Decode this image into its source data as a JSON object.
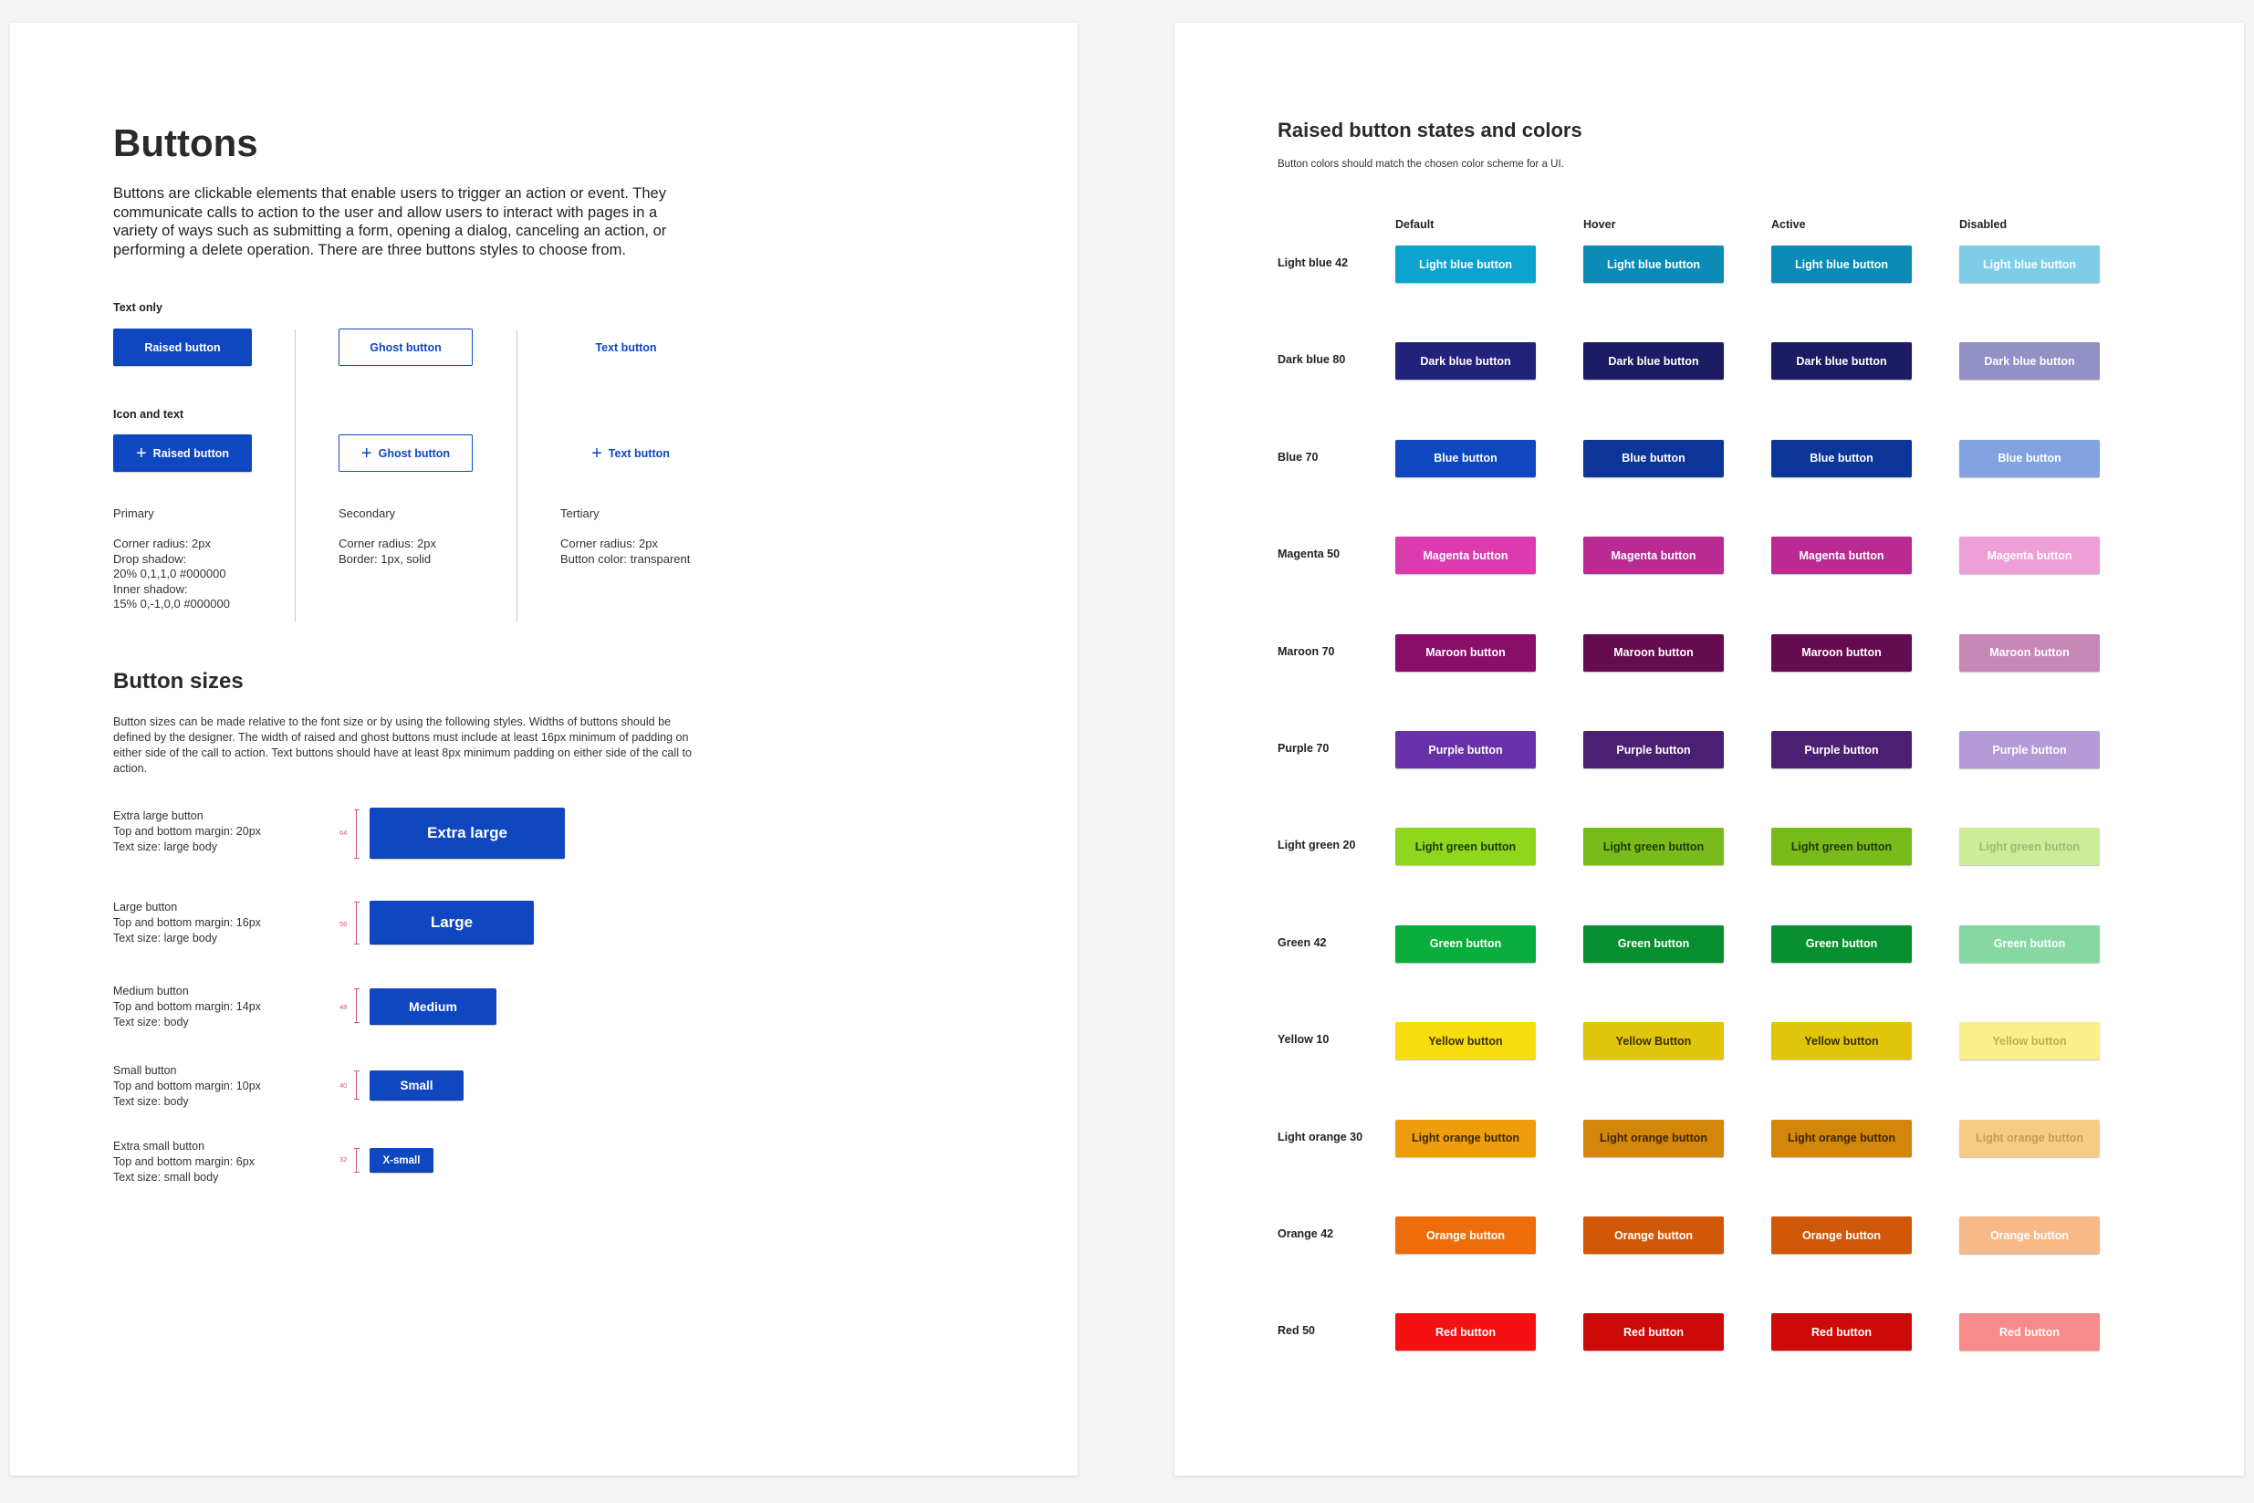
{
  "left": {
    "title": "Buttons",
    "intro": "Buttons are clickable elements that enable users to trigger an action or event. They communicate calls to action to the user and allow users to interact with pages in a variety of ways such as submitting a form, opening a dialog, canceling an action, or performing a delete operation. There are three buttons styles to choose from.",
    "text_only_label": "Text only",
    "icon_and_text_label": "Icon and text",
    "raised_label": "Raised button",
    "ghost_label": "Ghost button",
    "text_label": "Text button",
    "primary": {
      "name": "Primary",
      "notes": "Corner radius: 2px\nDrop shadow:\n20% 0,1,1,0 #000000\nInner shadow:\n15% 0,-1,0,0 #000000"
    },
    "secondary": {
      "name": "Secondary",
      "notes": "Corner radius: 2px\nBorder: 1px, solid"
    },
    "tertiary": {
      "name": "Tertiary",
      "notes": "Corner radius: 2px\nButton color: transparent"
    },
    "sizes_title": "Button sizes",
    "sizes_body": "Button sizes can be made relative to the font size or by using the following styles. Widths of buttons should be defined by the designer. The width of raised and ghost buttons must include at least 16px minimum of padding on either side of the call to action. Text buttons should have at least 8px minimum padding on either side of the call to action.",
    "sizes": [
      {
        "desc": "Extra large button\nTop and bottom margin: 20px\nText size: large body",
        "measure": "64",
        "label": "Extra large"
      },
      {
        "desc": "Large button\nTop and bottom margin: 16px\nText size: large body",
        "measure": "56",
        "label": "Large"
      },
      {
        "desc": "Medium button\nTop and bottom margin: 14px\nText size: body",
        "measure": "48",
        "label": "Medium"
      },
      {
        "desc": "Small button\nTop and bottom margin: 10px\nText size: body",
        "measure": "40",
        "label": "Small"
      },
      {
        "desc": "Extra small button\nTop and bottom margin: 6px\nText size: small body",
        "measure": "32",
        "label": "X-small"
      }
    ]
  },
  "right": {
    "title": "Raised button states and colors",
    "subtitle": "Button colors should match the chosen color scheme for a UI.",
    "columns": [
      "Default",
      "Hover",
      "Active",
      "Disabled"
    ],
    "rows": [
      {
        "label": "Light blue 42",
        "buttons": [
          "Light blue button",
          "Light blue button",
          "Light blue button",
          "Light blue button"
        ],
        "colors": [
          "#0da3cf",
          "#0b8cb6",
          "#0b8cb6",
          "#7dcde8"
        ],
        "text": [
          "#ffffff",
          "#ffffff",
          "#ffffff",
          "#ffffff"
        ]
      },
      {
        "label": "Dark blue 80",
        "buttons": [
          "Dark blue button",
          "Dark blue button",
          "Dark blue button",
          "Dark blue button"
        ],
        "colors": [
          "#23227a",
          "#1c1b64",
          "#1c1b64",
          "#9290c4"
        ],
        "text": [
          "#ffffff",
          "#ffffff",
          "#ffffff",
          "#ffffff"
        ]
      },
      {
        "label": "Blue 70",
        "buttons": [
          "Blue button",
          "Blue button",
          "Blue button",
          "Blue button"
        ],
        "colors": [
          "#0f47c0",
          "#0b3599",
          "#0b3599",
          "#82a3df"
        ],
        "text": [
          "#ffffff",
          "#ffffff",
          "#ffffff",
          "#ffffff"
        ]
      },
      {
        "label": "Magenta 50",
        "buttons": [
          "Magenta button",
          "Magenta button",
          "Magenta button",
          "Magenta button"
        ],
        "colors": [
          "#dc3aaf",
          "#b92a92",
          "#b92a92",
          "#ee9fd8"
        ],
        "text": [
          "#ffffff",
          "#ffffff",
          "#ffffff",
          "#ffffff"
        ]
      },
      {
        "label": "Maroon 70",
        "buttons": [
          "Maroon button",
          "Maroon button",
          "Maroon button",
          "Maroon button"
        ],
        "colors": [
          "#8a0d6a",
          "#650b4f",
          "#650b4f",
          "#c787b6"
        ],
        "text": [
          "#ffffff",
          "#ffffff",
          "#ffffff",
          "#ffffff"
        ]
      },
      {
        "label": "Purple 70",
        "buttons": [
          "Purple button",
          "Purple button",
          "Purple button",
          "Purple button"
        ],
        "colors": [
          "#6931a8",
          "#4b1f72",
          "#4b1f72",
          "#b49ad6"
        ],
        "text": [
          "#ffffff",
          "#ffffff",
          "#ffffff",
          "#ffffff"
        ]
      },
      {
        "label": "Light green 20",
        "buttons": [
          "Light green button",
          "Light green button",
          "Light green button",
          "Light green button"
        ],
        "colors": [
          "#8fd61f",
          "#79bb1b",
          "#79bb1b",
          "#cdec9a"
        ],
        "text": [
          "#1f3a00",
          "#1f3a00",
          "#1f3a00",
          "#9bbb72"
        ]
      },
      {
        "label": "Green 42",
        "buttons": [
          "Green button",
          "Green button",
          "Green button",
          "Green button"
        ],
        "colors": [
          "#0aae3c",
          "#088f2f",
          "#088f2f",
          "#86d8a0"
        ],
        "text": [
          "#ffffff",
          "#ffffff",
          "#ffffff",
          "#ffffff"
        ]
      },
      {
        "label": "Yellow 10",
        "buttons": [
          "Yellow button",
          "Yellow Button",
          "Yellow button",
          "Yellow button"
        ],
        "colors": [
          "#f7dd0f",
          "#e0c50c",
          "#e0c50c",
          "#fbef8c"
        ],
        "text": [
          "#3a3000",
          "#3a3000",
          "#3a3000",
          "#bfae50"
        ]
      },
      {
        "label": "Light orange 30",
        "buttons": [
          "Light orange button",
          "Light orange button",
          "Light orange button",
          "Light orange button"
        ],
        "colors": [
          "#ee9e0c",
          "#d4860a",
          "#d4860a",
          "#f6cc85"
        ],
        "text": [
          "#3a2600",
          "#3a2600",
          "#3a2600",
          "#c99a52"
        ]
      },
      {
        "label": "Orange 42",
        "buttons": [
          "Orange button",
          "Orange button",
          "Orange button",
          "Orange button"
        ],
        "colors": [
          "#ee6d0a",
          "#d15808",
          "#d15808",
          "#f6b987"
        ],
        "text": [
          "#ffffff",
          "#ffffff",
          "#ffffff",
          "#ffffff"
        ]
      },
      {
        "label": "Red 50",
        "buttons": [
          "Red button",
          "Red button",
          "Red button",
          "Red button"
        ],
        "colors": [
          "#f51111",
          "#cc0a0a",
          "#cc0a0a",
          "#f98a8a"
        ],
        "text": [
          "#ffffff",
          "#ffffff",
          "#ffffff",
          "#ffffff"
        ]
      }
    ]
  }
}
